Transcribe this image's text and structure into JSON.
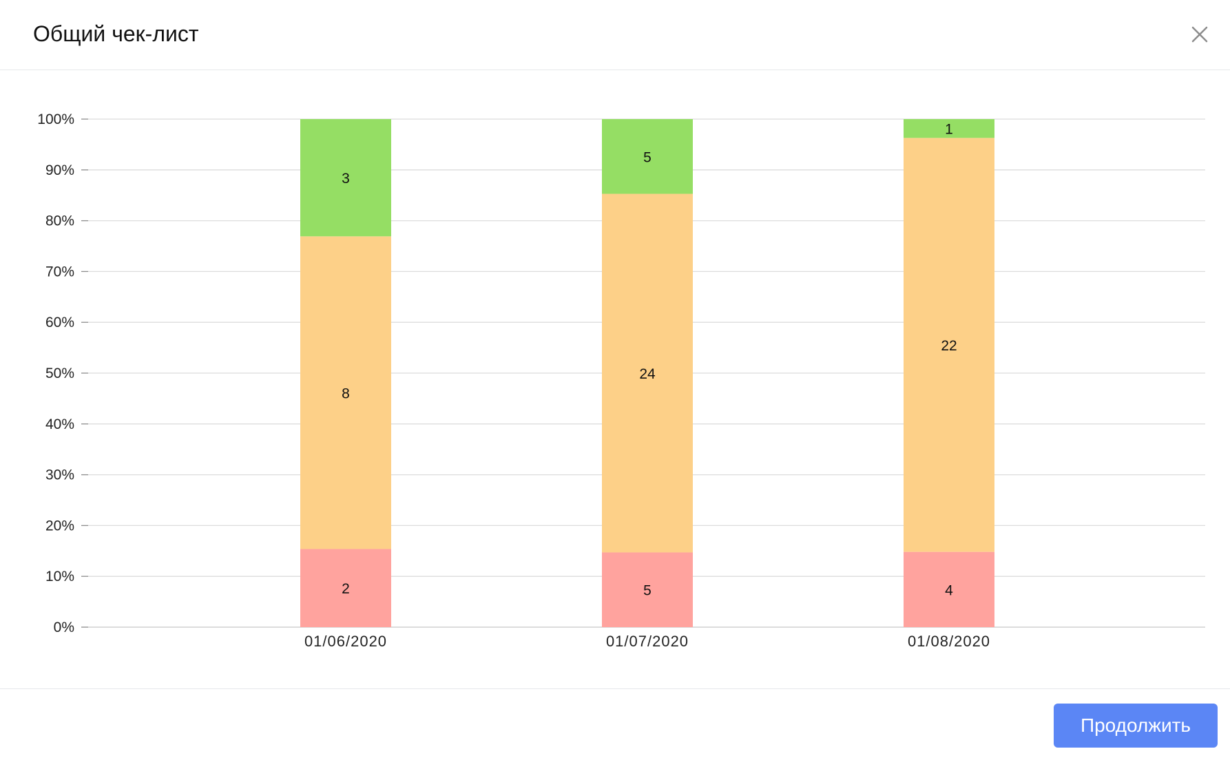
{
  "modal": {
    "title": "Общий чек-лист",
    "close_icon": "close-icon",
    "continue_label": "Продолжить",
    "accent_color": "#5b86f5"
  },
  "chart_data": {
    "type": "bar",
    "stacked": true,
    "normalized_percent": true,
    "categories": [
      "01/06/2020",
      "01/07/2020",
      "01/08/2020"
    ],
    "series": [
      {
        "values": [
          2,
          5,
          4
        ],
        "color": "#ffa39e"
      },
      {
        "values": [
          8,
          24,
          22
        ],
        "color": "#fdd088"
      },
      {
        "values": [
          3,
          5,
          1
        ],
        "color": "#95de64"
      }
    ],
    "yticks": [
      "0%",
      "10%",
      "20%",
      "30%",
      "40%",
      "50%",
      "60%",
      "70%",
      "80%",
      "90%",
      "100%"
    ],
    "ylim": [
      0,
      100
    ],
    "grid": true,
    "legend": "none",
    "title": "",
    "xlabel": "",
    "ylabel": ""
  }
}
